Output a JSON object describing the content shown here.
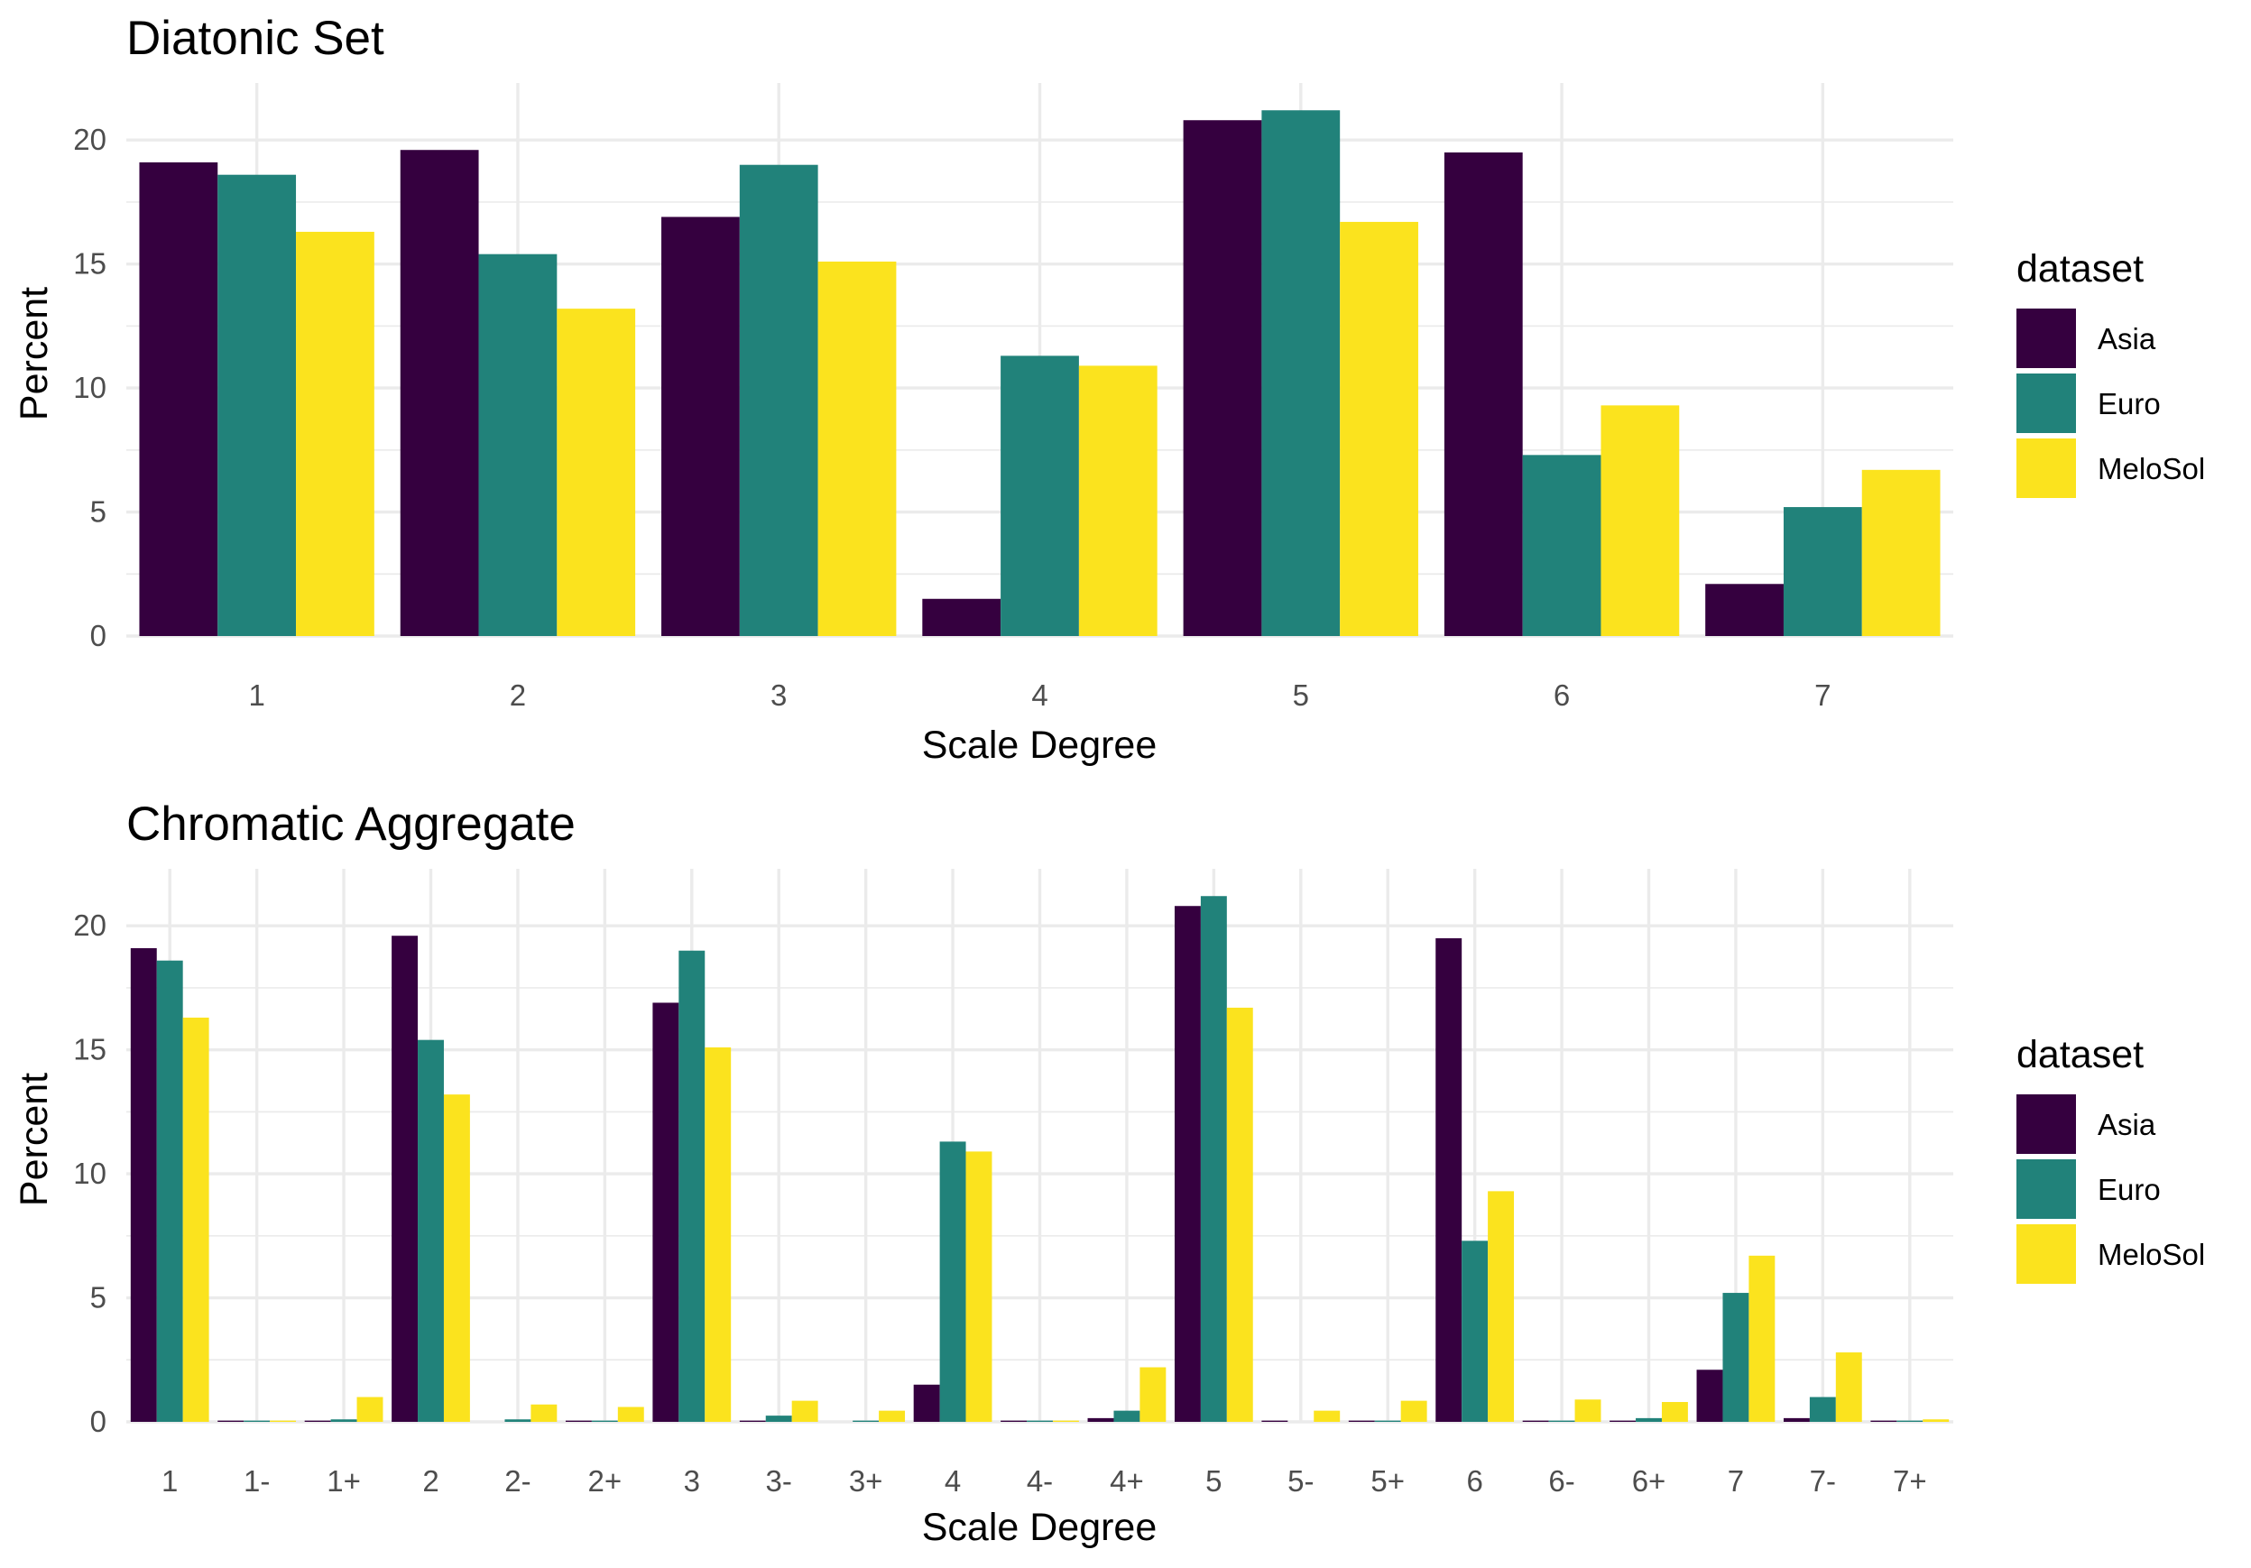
{
  "colors": {
    "Asia": "#35003F",
    "Euro": "#21827A",
    "MeloSol": "#FBE31E"
  },
  "chart_data": [
    {
      "type": "bar",
      "title": "Diatonic Set",
      "xlabel": "Scale Degree",
      "ylabel": "Percent",
      "ylim": [
        0,
        22.3
      ],
      "yticks": [
        0,
        5,
        10,
        15,
        20
      ],
      "grid": true,
      "legend": {
        "title": "dataset",
        "position": "right"
      },
      "categories": [
        "1",
        "2",
        "3",
        "4",
        "5",
        "6",
        "7"
      ],
      "series": [
        {
          "name": "Asia",
          "values": [
            19.1,
            19.6,
            16.9,
            1.5,
            20.8,
            19.5,
            2.1
          ]
        },
        {
          "name": "Euro",
          "values": [
            18.6,
            15.4,
            19.0,
            11.3,
            21.2,
            7.3,
            5.2
          ]
        },
        {
          "name": "MeloSol",
          "values": [
            16.3,
            13.2,
            15.1,
            10.9,
            16.7,
            9.3,
            6.7
          ]
        }
      ]
    },
    {
      "type": "bar",
      "title": "Chromatic Aggregate",
      "xlabel": "Scale Degree",
      "ylabel": "Percent",
      "ylim": [
        0,
        22.3
      ],
      "yticks": [
        0,
        5,
        10,
        15,
        20
      ],
      "grid": true,
      "legend": {
        "title": "dataset",
        "position": "right"
      },
      "categories": [
        "1",
        "1-",
        "1+",
        "2",
        "2-",
        "2+",
        "3",
        "3-",
        "3+",
        "4",
        "4-",
        "4+",
        "5",
        "5-",
        "5+",
        "6",
        "6-",
        "6+",
        "7",
        "7-",
        "7+"
      ],
      "series": [
        {
          "name": "Asia",
          "values": [
            19.1,
            0.05,
            0.05,
            19.6,
            0.0,
            0.05,
            16.9,
            0.05,
            0.0,
            1.5,
            0.05,
            0.15,
            20.8,
            0.05,
            0.05,
            19.5,
            0.05,
            0.05,
            2.1,
            0.15,
            0.05
          ]
        },
        {
          "name": "Euro",
          "values": [
            18.6,
            0.05,
            0.1,
            15.4,
            0.1,
            0.05,
            19.0,
            0.25,
            0.05,
            11.3,
            0.05,
            0.45,
            21.2,
            0.0,
            0.05,
            7.3,
            0.05,
            0.15,
            5.2,
            1.0,
            0.05
          ]
        },
        {
          "name": "MeloSol",
          "values": [
            16.3,
            0.05,
            1.0,
            13.2,
            0.7,
            0.6,
            15.1,
            0.85,
            0.45,
            10.9,
            0.05,
            2.2,
            16.7,
            0.45,
            0.85,
            9.3,
            0.9,
            0.8,
            6.7,
            2.8,
            0.1
          ]
        }
      ]
    }
  ]
}
